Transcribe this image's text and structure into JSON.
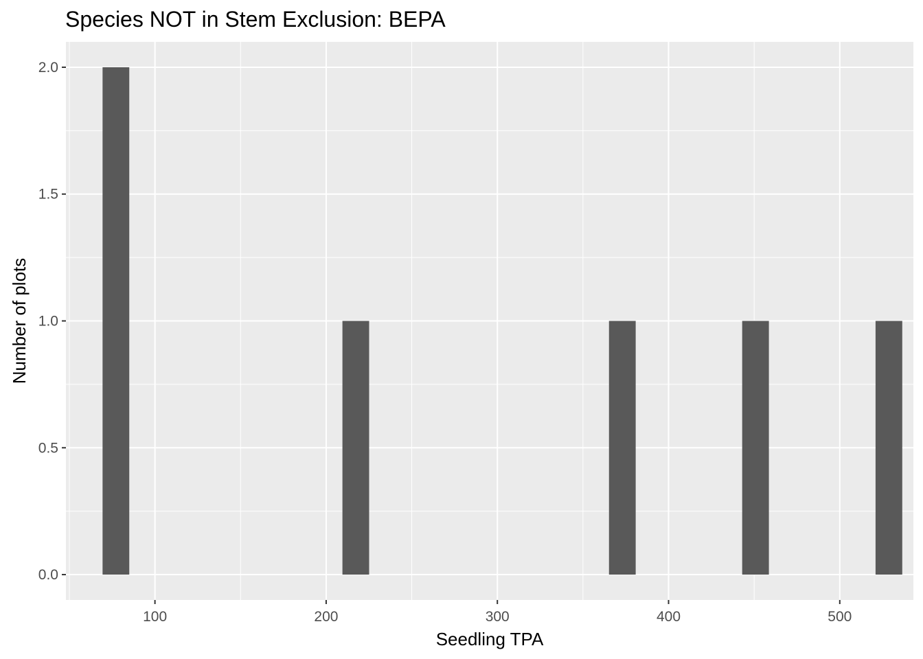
{
  "chart_data": {
    "type": "bar",
    "title": "Species NOT in Stem Exclusion: BEPA",
    "xlabel": "Seedling TPA",
    "ylabel": "Number of plots",
    "xlim": [
      48,
      543
    ],
    "ylim": [
      -0.1,
      2.1
    ],
    "x_ticks": [
      100,
      200,
      300,
      400,
      500
    ],
    "x_tick_labels": [
      "100",
      "200",
      "300",
      "400",
      "500"
    ],
    "y_ticks": [
      0.0,
      0.5,
      1.0,
      1.5,
      2.0
    ],
    "y_tick_labels": [
      "0.0",
      "0.5",
      "1.0",
      "1.5",
      "2.0"
    ],
    "bin_width": 15.6,
    "bars": [
      {
        "x": 77.2,
        "value": 2
      },
      {
        "x": 217.3,
        "value": 1
      },
      {
        "x": 373.0,
        "value": 1
      },
      {
        "x": 450.8,
        "value": 1
      },
      {
        "x": 528.7,
        "value": 1
      }
    ],
    "grid": true,
    "colors": {
      "panel_background": "#EBEBEB",
      "grid_line": "#FFFFFF",
      "bar_fill": "#595959",
      "tick_text": "#4D4D4D",
      "tick_mark": "#333333"
    }
  }
}
